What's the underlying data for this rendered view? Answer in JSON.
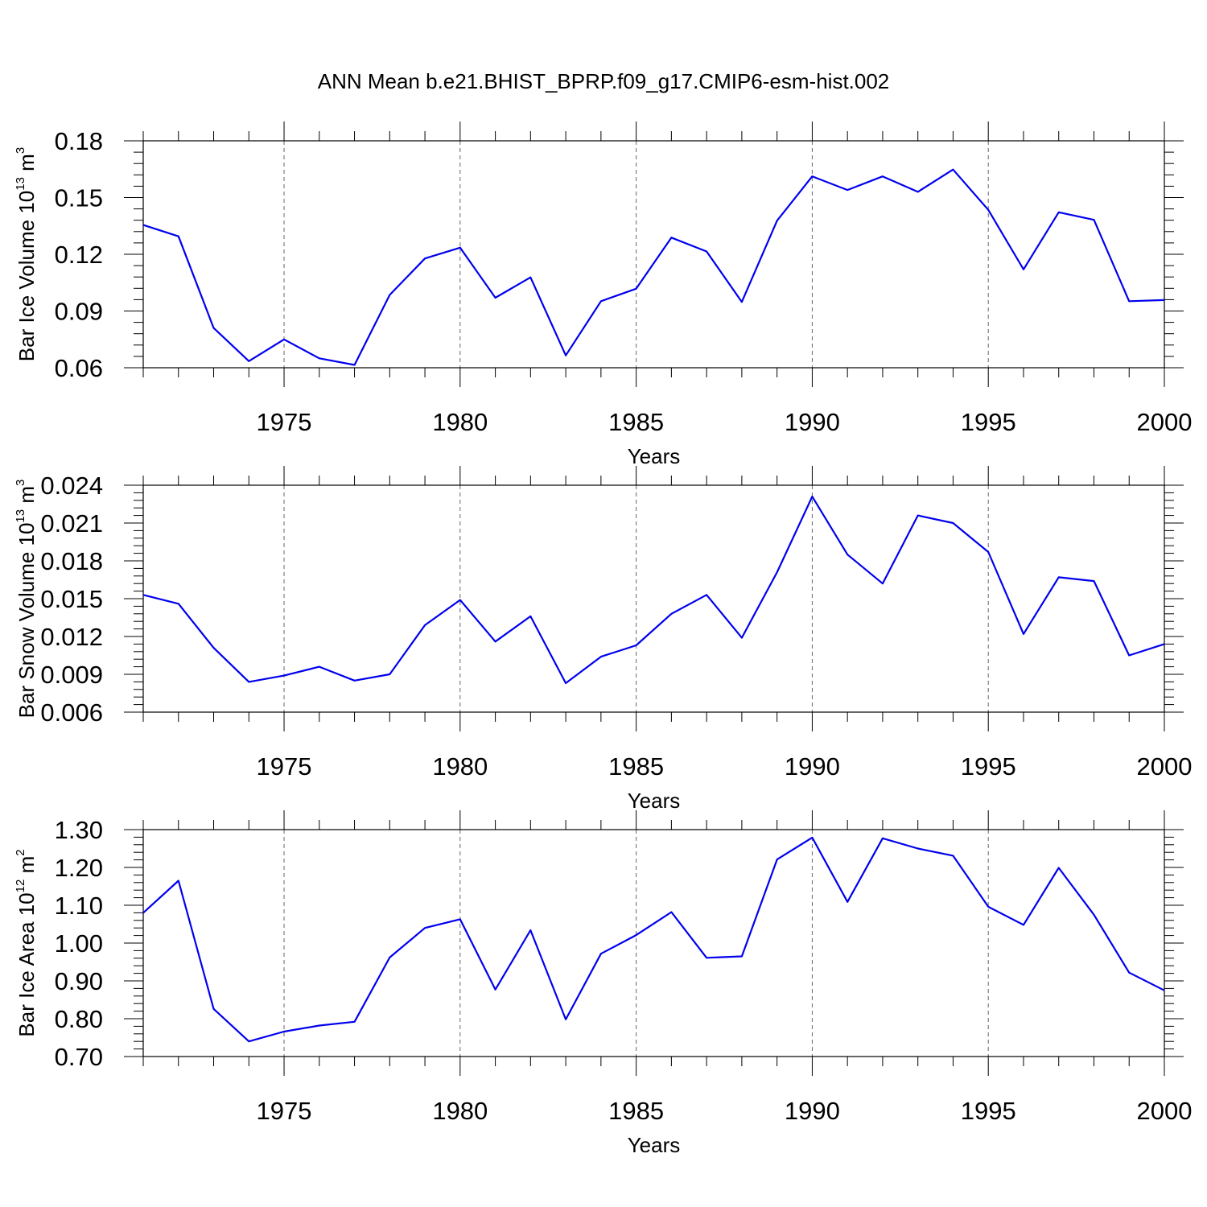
{
  "title": "ANN Mean b.e21.BHIST_BPRP.f09_g17.CMIP6-esm-hist.002",
  "colors": {
    "series": "#0000ee",
    "axes": "#000000",
    "grid": "#666666"
  },
  "chart_data": [
    {
      "type": "line",
      "xlabel": "Years",
      "ylabel": {
        "text": "Bar Ice Volume 10",
        "exp": "13",
        "unit": " m",
        "unit_exp": "3"
      },
      "xlim": [
        1971,
        2000
      ],
      "ylim": [
        0.06,
        0.18
      ],
      "x_major_ticks": [
        "1975",
        "1980",
        "1985",
        "1990",
        "1995",
        "2000"
      ],
      "y_major_ticks": [
        "0.06",
        "0.09",
        "0.12",
        "0.15",
        "0.18"
      ],
      "grid": "vertical dashed at major x ticks",
      "x": [
        1971,
        1972,
        1973,
        1974,
        1975,
        1976,
        1977,
        1978,
        1979,
        1980,
        1981,
        1982,
        1983,
        1984,
        1985,
        1986,
        1987,
        1988,
        1989,
        1990,
        1991,
        1992,
        1993,
        1994,
        1995,
        1996,
        1997,
        1998,
        1999,
        2000
      ],
      "values": [
        0.1355,
        0.1295,
        0.081,
        0.0635,
        0.075,
        0.065,
        0.0615,
        0.0985,
        0.1178,
        0.1235,
        0.097,
        0.1078,
        0.0665,
        0.0952,
        0.1018,
        0.1288,
        0.1215,
        0.0948,
        0.1378,
        0.1612,
        0.154,
        0.1612,
        0.153,
        0.1648,
        0.1435,
        0.112,
        0.1422,
        0.1382,
        0.0952,
        0.0958
      ]
    },
    {
      "type": "line",
      "xlabel": "Years",
      "ylabel": {
        "text": "Bar Snow Volume 10",
        "exp": "13",
        "unit": " m",
        "unit_exp": "3"
      },
      "xlim": [
        1971,
        2000
      ],
      "ylim": [
        0.006,
        0.024
      ],
      "x_major_ticks": [
        "1975",
        "1980",
        "1985",
        "1990",
        "1995",
        "2000"
      ],
      "y_major_ticks": [
        "0.006",
        "0.009",
        "0.012",
        "0.015",
        "0.018",
        "0.021",
        "0.024"
      ],
      "grid": "vertical dashed at major x ticks",
      "x": [
        1971,
        1972,
        1973,
        1974,
        1975,
        1976,
        1977,
        1978,
        1979,
        1980,
        1981,
        1982,
        1983,
        1984,
        1985,
        1986,
        1987,
        1988,
        1989,
        1990,
        1991,
        1992,
        1993,
        1994,
        1995,
        1996,
        1997,
        1998,
        1999,
        2000
      ],
      "values": [
        0.0153,
        0.0146,
        0.0111,
        0.0084,
        0.0089,
        0.0096,
        0.0085,
        0.009,
        0.0129,
        0.0149,
        0.0116,
        0.0136,
        0.0083,
        0.0104,
        0.0113,
        0.0138,
        0.0153,
        0.0119,
        0.0171,
        0.0231,
        0.0185,
        0.0162,
        0.0216,
        0.021,
        0.0187,
        0.0122,
        0.0167,
        0.0164,
        0.0105,
        0.0114
      ]
    },
    {
      "type": "line",
      "xlabel": "Years",
      "ylabel": {
        "text": "Bar Ice Area 10",
        "exp": "12",
        "unit": " m",
        "unit_exp": "2"
      },
      "xlim": [
        1971,
        2000
      ],
      "ylim": [
        0.7,
        1.3
      ],
      "x_major_ticks": [
        "1975",
        "1980",
        "1985",
        "1990",
        "1995",
        "2000"
      ],
      "y_major_ticks": [
        "0.70",
        "0.80",
        "0.90",
        "1.00",
        "1.10",
        "1.20",
        "1.30"
      ],
      "grid": "vertical dashed at major x ticks",
      "x": [
        1971,
        1972,
        1973,
        1974,
        1975,
        1976,
        1977,
        1978,
        1979,
        1980,
        1981,
        1982,
        1983,
        1984,
        1985,
        1986,
        1987,
        1988,
        1989,
        1990,
        1991,
        1992,
        1993,
        1994,
        1995,
        1996,
        1997,
        1998,
        1999,
        2000
      ],
      "values": [
        1.08,
        1.165,
        0.826,
        0.74,
        0.766,
        0.782,
        0.792,
        0.962,
        1.04,
        1.063,
        0.877,
        1.034,
        0.798,
        0.972,
        1.021,
        1.082,
        0.961,
        0.965,
        1.221,
        1.279,
        1.109,
        1.277,
        1.25,
        1.231,
        1.096,
        1.048,
        1.199,
        1.075,
        0.922,
        0.875
      ]
    }
  ]
}
